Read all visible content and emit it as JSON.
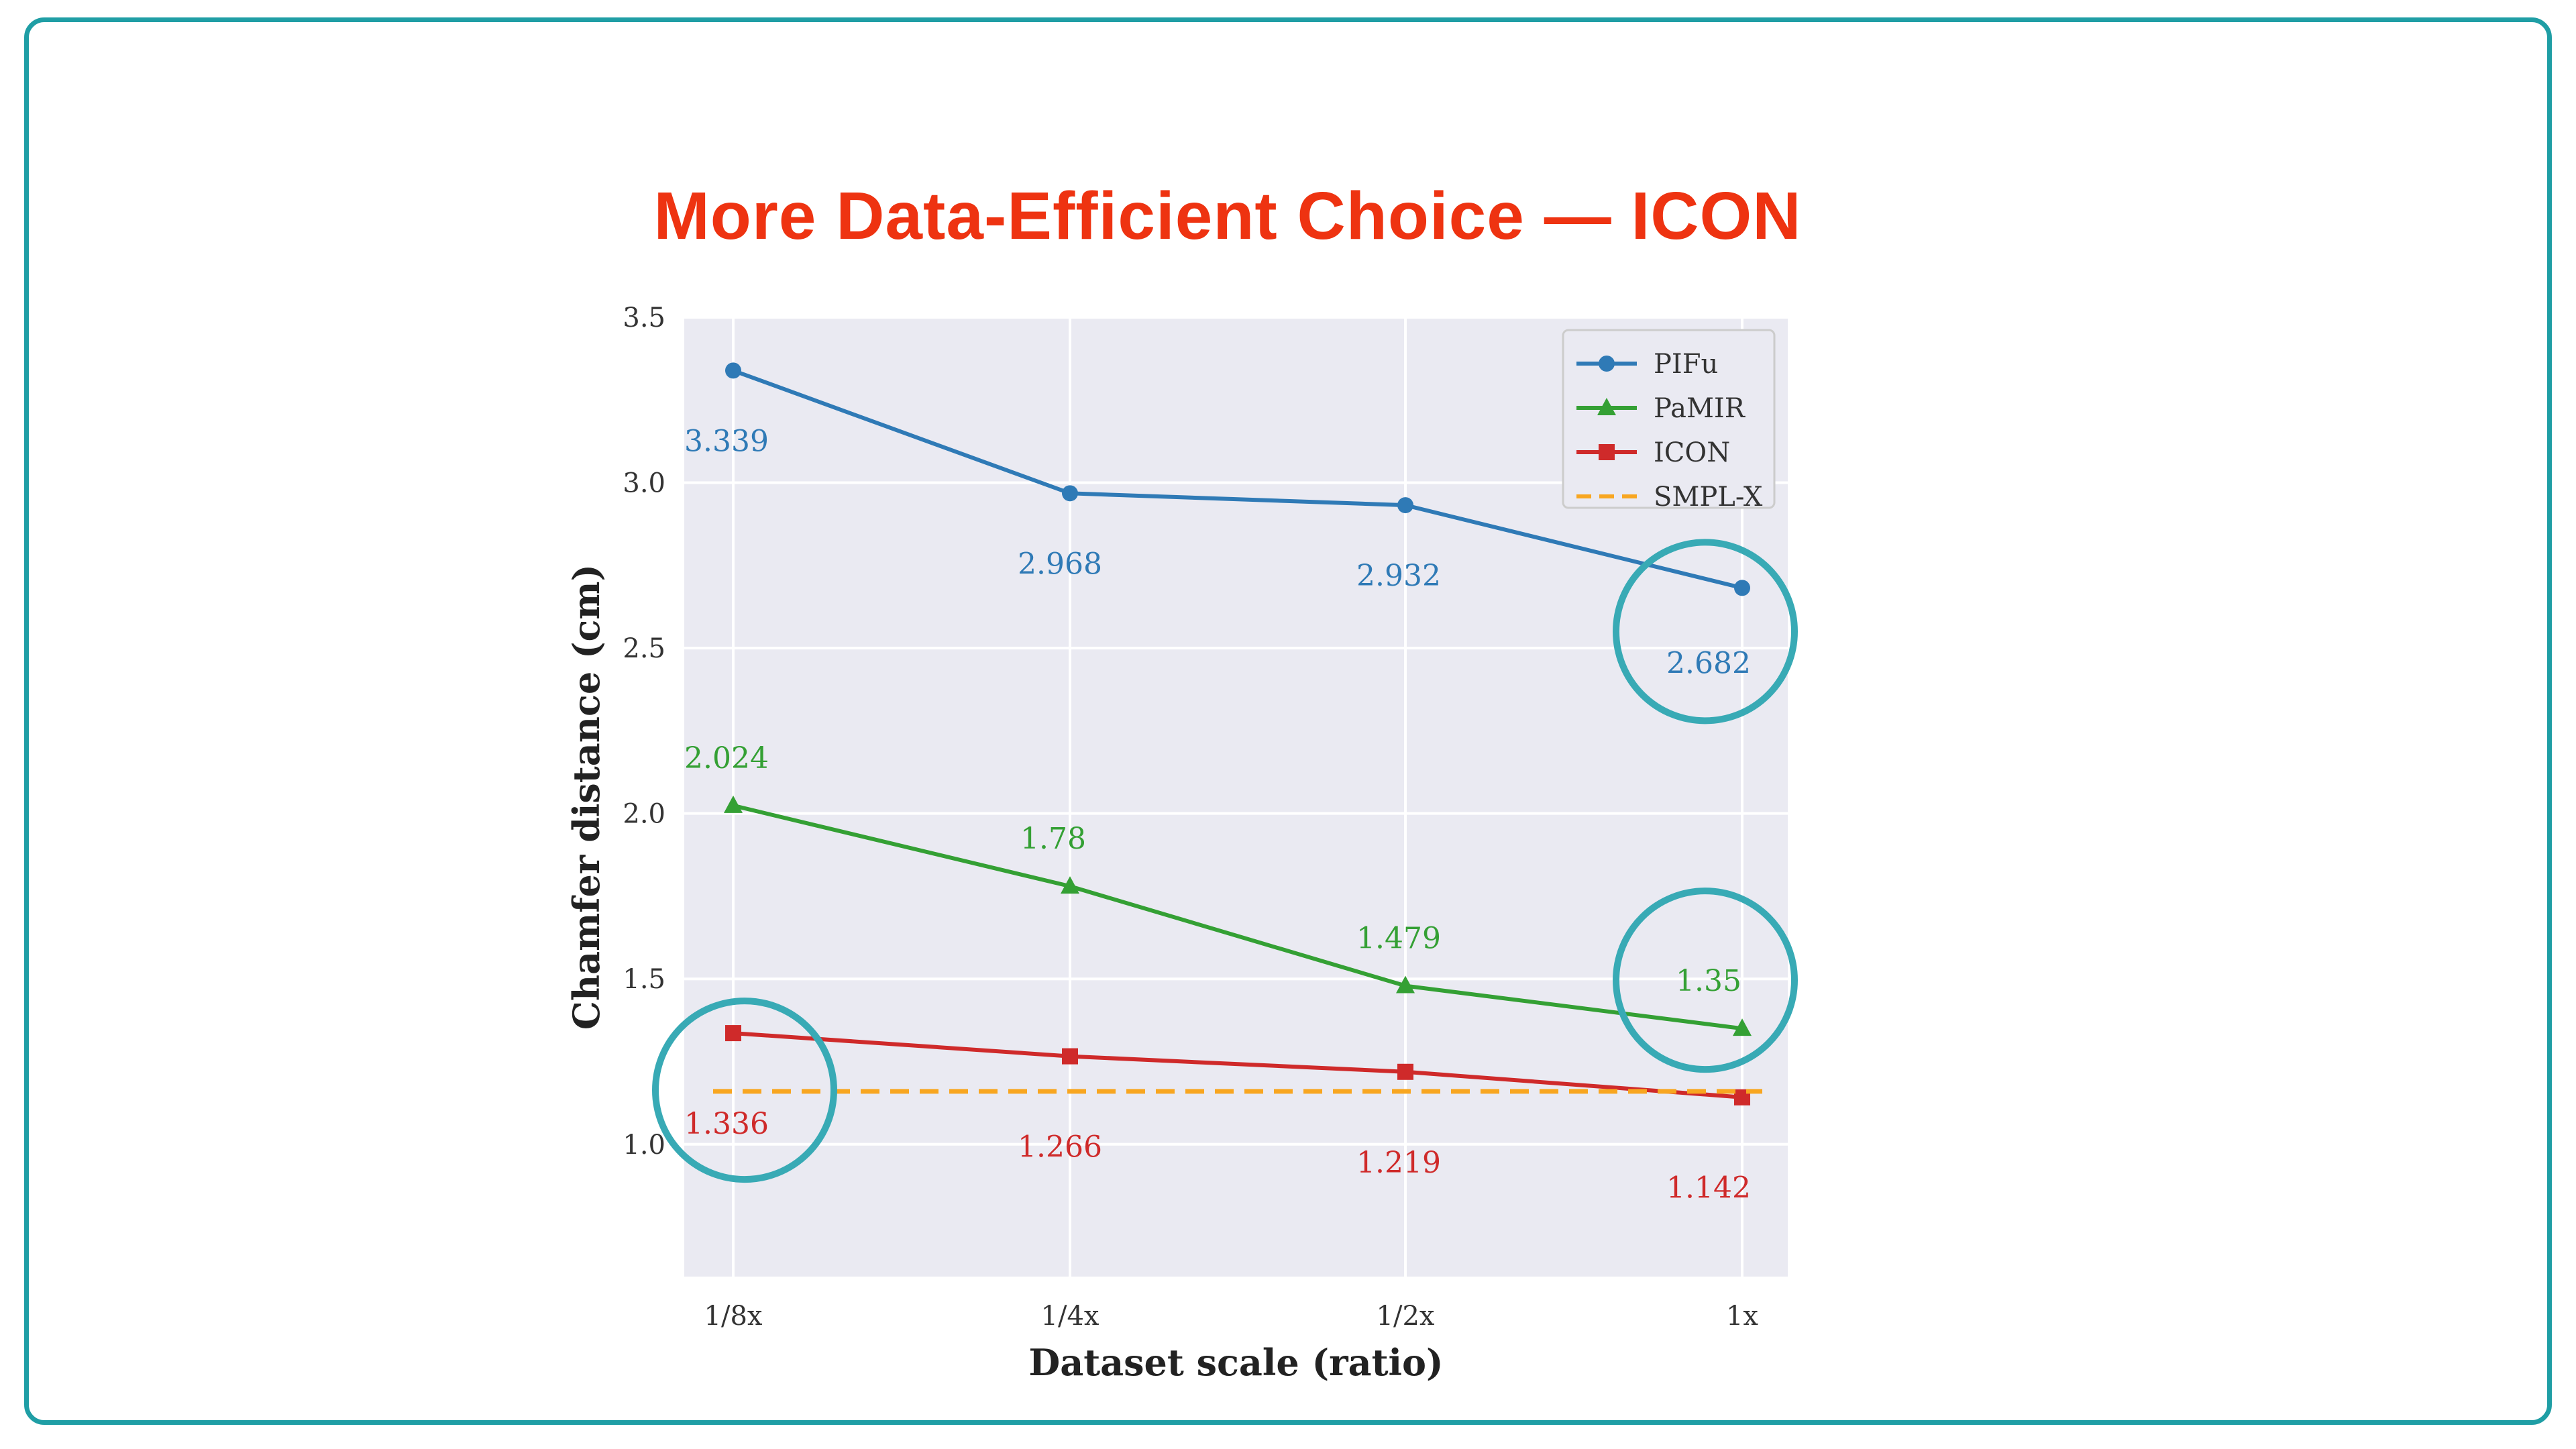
{
  "slide": {
    "title": "More Data-Efficient Choice — ICON",
    "title_color": "#ee3311",
    "frame_color": "#1f9ea5"
  },
  "chart_data": {
    "type": "line",
    "title": "",
    "xlabel": "Dataset scale (ratio)",
    "ylabel": "Chamfer distance (cm)",
    "categories": [
      "1/8x",
      "1/4x",
      "1/2x",
      "1x"
    ],
    "ylim": [
      0.6,
      3.5
    ],
    "yticks": [
      "1.0",
      "1.5",
      "2.0",
      "2.5",
      "3.0",
      "3.5"
    ],
    "grid": true,
    "background": "#eaeaf2",
    "legend_position": "top-right",
    "series": [
      {
        "name": "PIFu",
        "color": "#2f7ab6",
        "marker": "circle",
        "values": [
          3.339,
          2.968,
          2.932,
          2.682
        ],
        "labels": [
          "3.339",
          "2.968",
          "2.932",
          "2.682"
        ]
      },
      {
        "name": "PaMIR",
        "color": "#34a034",
        "marker": "triangle",
        "values": [
          2.024,
          1.78,
          1.479,
          1.35
        ],
        "labels": [
          "2.024",
          "1.78",
          "1.479",
          "1.35"
        ]
      },
      {
        "name": "ICON",
        "color": "#cf2a2a",
        "marker": "square",
        "values": [
          1.336,
          1.266,
          1.219,
          1.142
        ],
        "labels": [
          "1.336",
          "1.266",
          "1.219",
          "1.142"
        ]
      },
      {
        "name": "SMPL-X",
        "color": "#f8a620",
        "style": "dashed",
        "values": [
          1.16,
          1.16,
          1.16,
          1.16
        ]
      }
    ],
    "highlight_circles": [
      {
        "series": "ICON",
        "category": "1/8x"
      },
      {
        "series": "PaMIR",
        "category": "1x"
      },
      {
        "series": "PIFu",
        "category": "1x"
      }
    ],
    "highlight_color": "#38aab5"
  }
}
